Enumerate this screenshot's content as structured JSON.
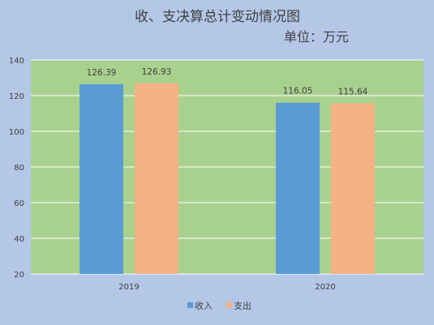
{
  "chart_data": {
    "type": "bar",
    "title": "收、支决算总计变动情况图",
    "subtitle": "单位：万元",
    "categories": [
      "2019",
      "2020"
    ],
    "series": [
      {
        "name": "收入",
        "values": [
          126.39,
          116.05
        ],
        "color": "#5b9bd5"
      },
      {
        "name": "支出",
        "values": [
          126.93,
          115.64
        ],
        "color": "#f4b183"
      }
    ],
    "ylim": [
      20,
      140
    ],
    "yticks": [
      20,
      40,
      60,
      80,
      100,
      120,
      140
    ],
    "grid": true,
    "legend": "bottom",
    "plot_background": "#a9d18e",
    "page_background": "#b4c7e7",
    "gridline_color": "#ffffff"
  }
}
